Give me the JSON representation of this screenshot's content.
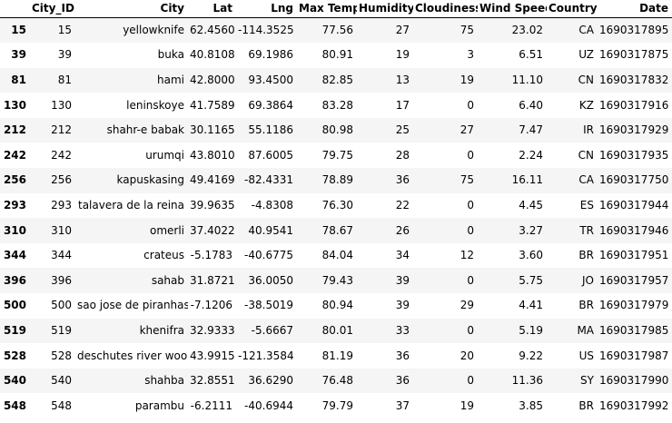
{
  "columns": [
    "",
    "City_ID",
    "City",
    "Lat",
    "Lng",
    "Max Temp",
    "Humidity",
    "Cloudiness",
    "Wind Speed",
    "Country",
    "Date"
  ],
  "rows": [
    {
      "index": "15",
      "cells": [
        "15",
        "yellowknife",
        "62.4560",
        "-114.3525",
        "77.56",
        "27",
        "75",
        "23.02",
        "CA",
        "1690317895"
      ]
    },
    {
      "index": "39",
      "cells": [
        "39",
        "buka",
        "40.8108",
        "69.1986",
        "80.91",
        "19",
        "3",
        "6.51",
        "UZ",
        "1690317875"
      ]
    },
    {
      "index": "81",
      "cells": [
        "81",
        "hami",
        "42.8000",
        "93.4500",
        "82.85",
        "13",
        "19",
        "11.10",
        "CN",
        "1690317832"
      ]
    },
    {
      "index": "130",
      "cells": [
        "130",
        "leninskoye",
        "41.7589",
        "69.3864",
        "83.28",
        "17",
        "0",
        "6.40",
        "KZ",
        "1690317916"
      ]
    },
    {
      "index": "212",
      "cells": [
        "212",
        "shahr-e babak",
        "30.1165",
        "55.1186",
        "80.98",
        "25",
        "27",
        "7.47",
        "IR",
        "1690317929"
      ]
    },
    {
      "index": "242",
      "cells": [
        "242",
        "urumqi",
        "43.8010",
        "87.6005",
        "79.75",
        "28",
        "0",
        "2.24",
        "CN",
        "1690317935"
      ]
    },
    {
      "index": "256",
      "cells": [
        "256",
        "kapuskasing",
        "49.4169",
        "-82.4331",
        "78.89",
        "36",
        "75",
        "16.11",
        "CA",
        "1690317750"
      ]
    },
    {
      "index": "293",
      "cells": [
        "293",
        "talavera de la reina",
        "39.9635",
        "-4.8308",
        "76.30",
        "22",
        "0",
        "4.45",
        "ES",
        "1690317944"
      ]
    },
    {
      "index": "310",
      "cells": [
        "310",
        "omerli",
        "37.4022",
        "40.9541",
        "78.67",
        "26",
        "0",
        "3.27",
        "TR",
        "1690317946"
      ]
    },
    {
      "index": "344",
      "cells": [
        "344",
        "crateus",
        "-5.1783",
        "-40.6775",
        "84.04",
        "34",
        "12",
        "3.60",
        "BR",
        "1690317951"
      ]
    },
    {
      "index": "396",
      "cells": [
        "396",
        "sahab",
        "31.8721",
        "36.0050",
        "79.43",
        "39",
        "0",
        "5.75",
        "JO",
        "1690317957"
      ]
    },
    {
      "index": "500",
      "cells": [
        "500",
        "sao jose de piranhas",
        "-7.1206",
        "-38.5019",
        "80.94",
        "39",
        "29",
        "4.41",
        "BR",
        "1690317979"
      ]
    },
    {
      "index": "519",
      "cells": [
        "519",
        "khenifra",
        "32.9333",
        "-5.6667",
        "80.01",
        "33",
        "0",
        "5.19",
        "MA",
        "1690317985"
      ]
    },
    {
      "index": "528",
      "cells": [
        "528",
        "deschutes river woods",
        "43.9915",
        "-121.3584",
        "81.19",
        "36",
        "20",
        "9.22",
        "US",
        "1690317987"
      ]
    },
    {
      "index": "540",
      "cells": [
        "540",
        "shahba",
        "32.8551",
        "36.6290",
        "76.48",
        "36",
        "0",
        "11.36",
        "SY",
        "1690317990"
      ]
    },
    {
      "index": "548",
      "cells": [
        "548",
        "parambu",
        "-6.2111",
        "-40.6944",
        "79.79",
        "37",
        "19",
        "3.85",
        "BR",
        "1690317992"
      ]
    }
  ]
}
